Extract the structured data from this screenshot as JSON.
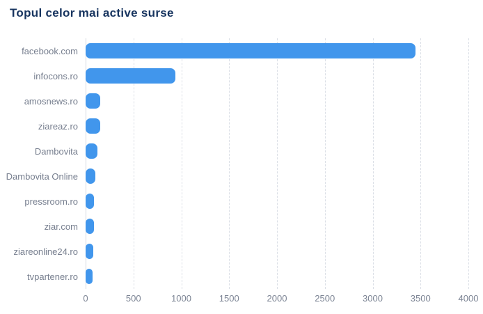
{
  "header": {
    "title": "Topul celor mai active surse"
  },
  "chart_data": {
    "type": "bar",
    "orientation": "horizontal",
    "title": "Topul celor mai active surse",
    "categories": [
      "facebook.com",
      "infocons.ro",
      "amosnews.ro",
      "ziareaz.ro",
      "Dambovita",
      "Dambovita Online",
      "pressroom.ro",
      "ziar.com",
      "ziareonline24.ro",
      "tvpartener.ro"
    ],
    "values": [
      3450,
      940,
      155,
      150,
      120,
      100,
      90,
      90,
      78,
      73
    ],
    "xlabel": "",
    "ylabel": "",
    "xlim": [
      0,
      4000
    ],
    "x_ticks": [
      0,
      500,
      1000,
      1500,
      2000,
      2500,
      3000,
      3500,
      4000
    ],
    "grid": "vertical-dashed",
    "legend": "none",
    "colors": {
      "bar": "#4196ec",
      "title": "#17345f",
      "category_label": "#767e8e",
      "tick_label": "#7c8494",
      "gridline": "#dbdfe6",
      "axis_line": "#d5d9df",
      "background": "#ffffff"
    }
  }
}
